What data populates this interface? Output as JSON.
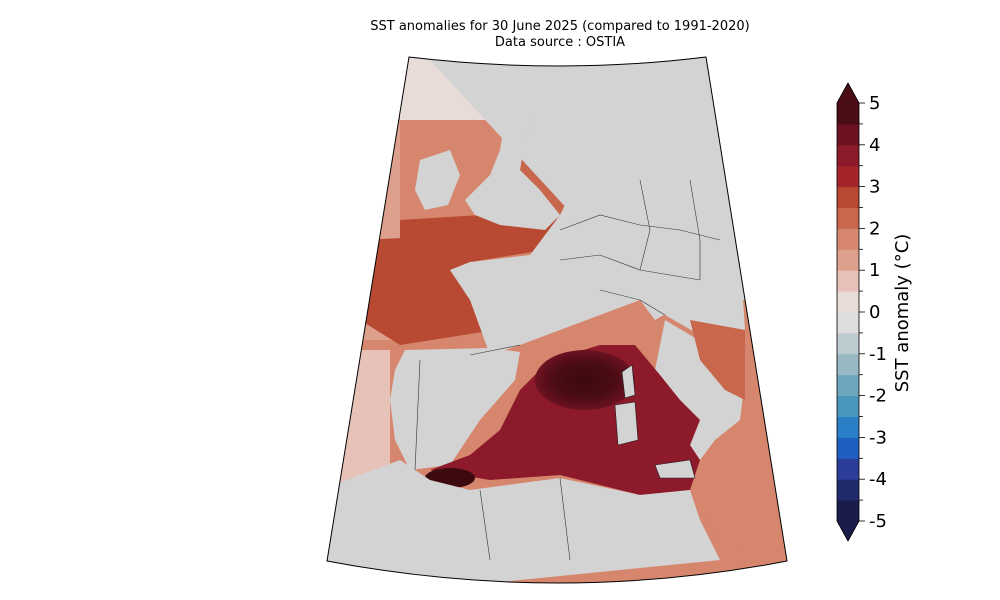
{
  "title": {
    "line1": "SST anomalies for 30 June 2025 (compared to 1991-2020)",
    "line2": "Data source : OSTIA"
  },
  "colorbar": {
    "label": "SST anomaly (°C)",
    "min": -5,
    "max": 5,
    "step": 0.5,
    "tick_labels": [
      "5",
      "4",
      "3",
      "2",
      "1",
      "0",
      "-1",
      "-2",
      "-3",
      "-4",
      "-5"
    ],
    "colors": [
      "#1a1d4a",
      "#222a6e",
      "#2c3d99",
      "#1f5fbf",
      "#2b7fc7",
      "#4a97bd",
      "#6ea7bd",
      "#98b8c3",
      "#bccbd0",
      "#dedede",
      "#e8dcd8",
      "#e6c2b8",
      "#dca08d",
      "#d6866c",
      "#c8674c",
      "#b84a33",
      "#a3252a",
      "#8c1a2a",
      "#6d1221",
      "#4a0c15"
    ]
  },
  "map": {
    "land_color": "#d3d3d3",
    "ocean_base_color": "#c8674c",
    "hot_spot_color": "#3d0a10"
  }
}
